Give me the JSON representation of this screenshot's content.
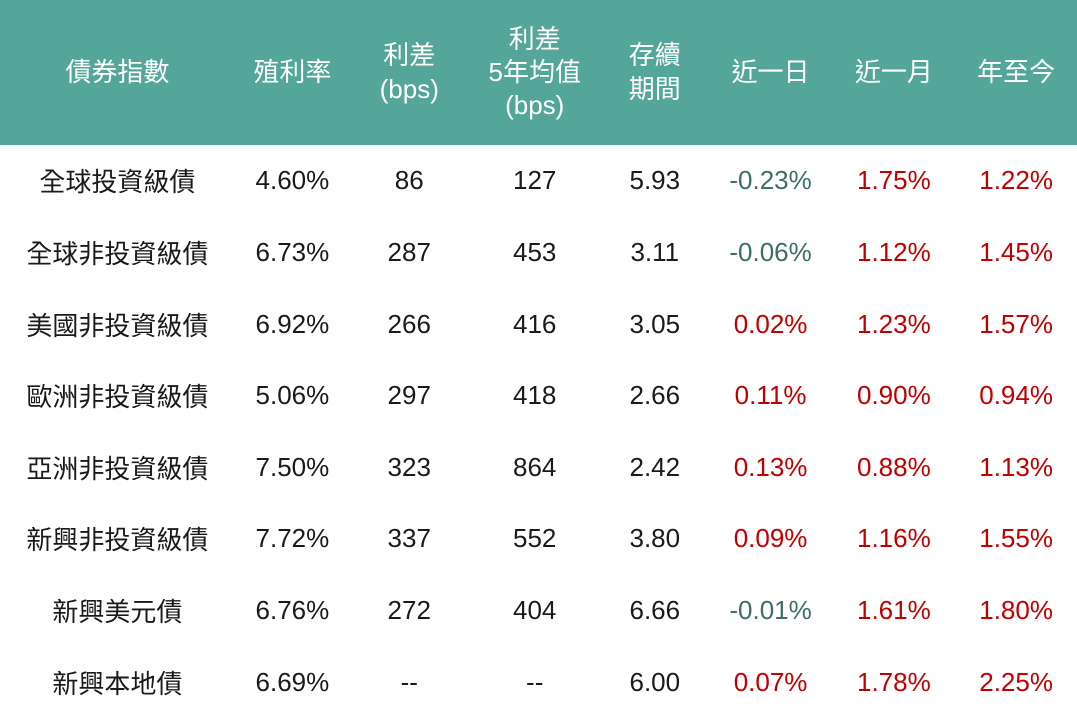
{
  "colors": {
    "header_bg": "#54A69B",
    "header_text": "#FFFFFF",
    "body_text": "#1A1A1A",
    "positive_change": "#C00000",
    "negative_change": "#3F6D68",
    "row_bg": "#FFFFFF"
  },
  "chart_data": {
    "type": "table",
    "columns": [
      {
        "id": "index",
        "label": "債券指數"
      },
      {
        "id": "yield",
        "label": "殖利率"
      },
      {
        "id": "spread",
        "label": "利差\n(bps)"
      },
      {
        "id": "spread-5y-avg",
        "label": "利差\n5年均值\n(bps)"
      },
      {
        "id": "duration",
        "label": "存續\n期間"
      },
      {
        "id": "chg-1d",
        "label": "近一日"
      },
      {
        "id": "chg-1m",
        "label": "近一月"
      },
      {
        "id": "chg-ytd",
        "label": "年至今"
      }
    ],
    "change_column_indexes": [
      5,
      6,
      7
    ],
    "rows": [
      [
        "全球投資級債",
        "4.60%",
        "86",
        "127",
        "5.93",
        "-0.23%",
        "1.75%",
        "1.22%"
      ],
      [
        "全球非投資級債",
        "6.73%",
        "287",
        "453",
        "3.11",
        "-0.06%",
        "1.12%",
        "1.45%"
      ],
      [
        "美國非投資級債",
        "6.92%",
        "266",
        "416",
        "3.05",
        "0.02%",
        "1.23%",
        "1.57%"
      ],
      [
        "歐洲非投資級債",
        "5.06%",
        "297",
        "418",
        "2.66",
        "0.11%",
        "0.90%",
        "0.94%"
      ],
      [
        "亞洲非投資級債",
        "7.50%",
        "323",
        "864",
        "2.42",
        "0.13%",
        "0.88%",
        "1.13%"
      ],
      [
        "新興非投資級債",
        "7.72%",
        "337",
        "552",
        "3.80",
        "0.09%",
        "1.16%",
        "1.55%"
      ],
      [
        "新興美元債",
        "6.76%",
        "272",
        "404",
        "6.66",
        "-0.01%",
        "1.61%",
        "1.80%"
      ],
      [
        "新興本地債",
        "6.69%",
        "--",
        "--",
        "6.00",
        "0.07%",
        "1.78%",
        "2.25%"
      ]
    ]
  }
}
